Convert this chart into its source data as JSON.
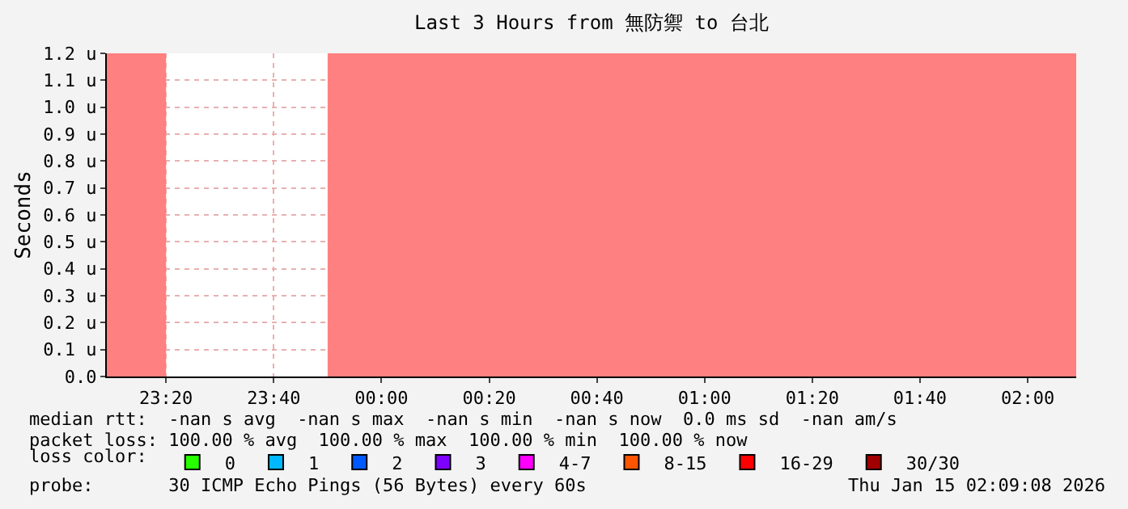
{
  "chart_data": {
    "type": "scatter",
    "title": "Last 3 Hours from 無防禦 to 台北",
    "ylabel": "Seconds",
    "xlim": [
      "2026-01-14T23:09",
      "2026-01-15T02:09"
    ],
    "xticks": [
      {
        "value": "2026-01-14T23:20",
        "label": "23:20"
      },
      {
        "value": "2026-01-14T23:40",
        "label": "23:40"
      },
      {
        "value": "2026-01-15T00:00",
        "label": "00:00"
      },
      {
        "value": "2026-01-15T00:20",
        "label": "00:20"
      },
      {
        "value": "2026-01-15T00:40",
        "label": "00:40"
      },
      {
        "value": "2026-01-15T01:00",
        "label": "01:00"
      },
      {
        "value": "2026-01-15T01:20",
        "label": "01:20"
      },
      {
        "value": "2026-01-15T01:40",
        "label": "01:40"
      },
      {
        "value": "2026-01-15T02:00",
        "label": "02:00"
      }
    ],
    "ylim": [
      0,
      1.2
    ],
    "yticks": [
      {
        "value": 0,
        "label": "0.0"
      },
      {
        "value": 0.1,
        "label": "0.1 u"
      },
      {
        "value": 0.2,
        "label": "0.2 u"
      },
      {
        "value": 0.3,
        "label": "0.3 u"
      },
      {
        "value": 0.4,
        "label": "0.4 u"
      },
      {
        "value": 0.5,
        "label": "0.5 u"
      },
      {
        "value": 0.6,
        "label": "0.6 u"
      },
      {
        "value": 0.7,
        "label": "0.7 u"
      },
      {
        "value": 0.8,
        "label": "0.8 u"
      },
      {
        "value": 0.9,
        "label": "0.9 u"
      },
      {
        "value": 1.0,
        "label": "1.0 u"
      },
      {
        "value": 1.1,
        "label": "1.1 u"
      },
      {
        "value": 1.2,
        "label": "1.2 u"
      }
    ],
    "grid": true,
    "legend": "bottom",
    "legend_title": "loss color:",
    "series": [
      {
        "type": "area",
        "color": "#ff8080",
        "x": [
          "2026-01-14T23:09",
          "2026-01-14T23:20"
        ],
        "values": [
          1.2,
          1.2
        ]
      },
      {
        "type": "area",
        "color": "#ff8080",
        "x": [
          "2026-01-14T23:50",
          "2026-01-15T02:09"
        ],
        "values": [
          1.2,
          1.2
        ]
      },
      {
        "name": "0",
        "color": "#26ff00",
        "marker": "square"
      },
      {
        "name": "1",
        "color": "#00b8ff",
        "marker": "square"
      },
      {
        "name": "2",
        "color": "#0059ff",
        "marker": "square"
      },
      {
        "name": "3",
        "color": "#7e00ff",
        "marker": "square"
      },
      {
        "name": "4-7",
        "color": "#ff00ff",
        "marker": "square"
      },
      {
        "name": "8-15",
        "color": "#ff5500",
        "marker": "square"
      },
      {
        "name": "16-29",
        "color": "#ff0000",
        "marker": "square"
      },
      {
        "name": "30/30",
        "color": "#a10000",
        "marker": "square"
      }
    ],
    "annotations": [
      "median rtt:  -nan s avg  -nan s max  -nan s min  -nan s now  0.0 ms sd  -nan am/s",
      "packet loss: 100.00 % avg  100.00 % max  100.00 % min  100.00 % now",
      "probe:       30 ICMP Echo Pings (56 Bytes) every 60s",
      "Thu Jan 15 02:09:08 2026"
    ]
  }
}
